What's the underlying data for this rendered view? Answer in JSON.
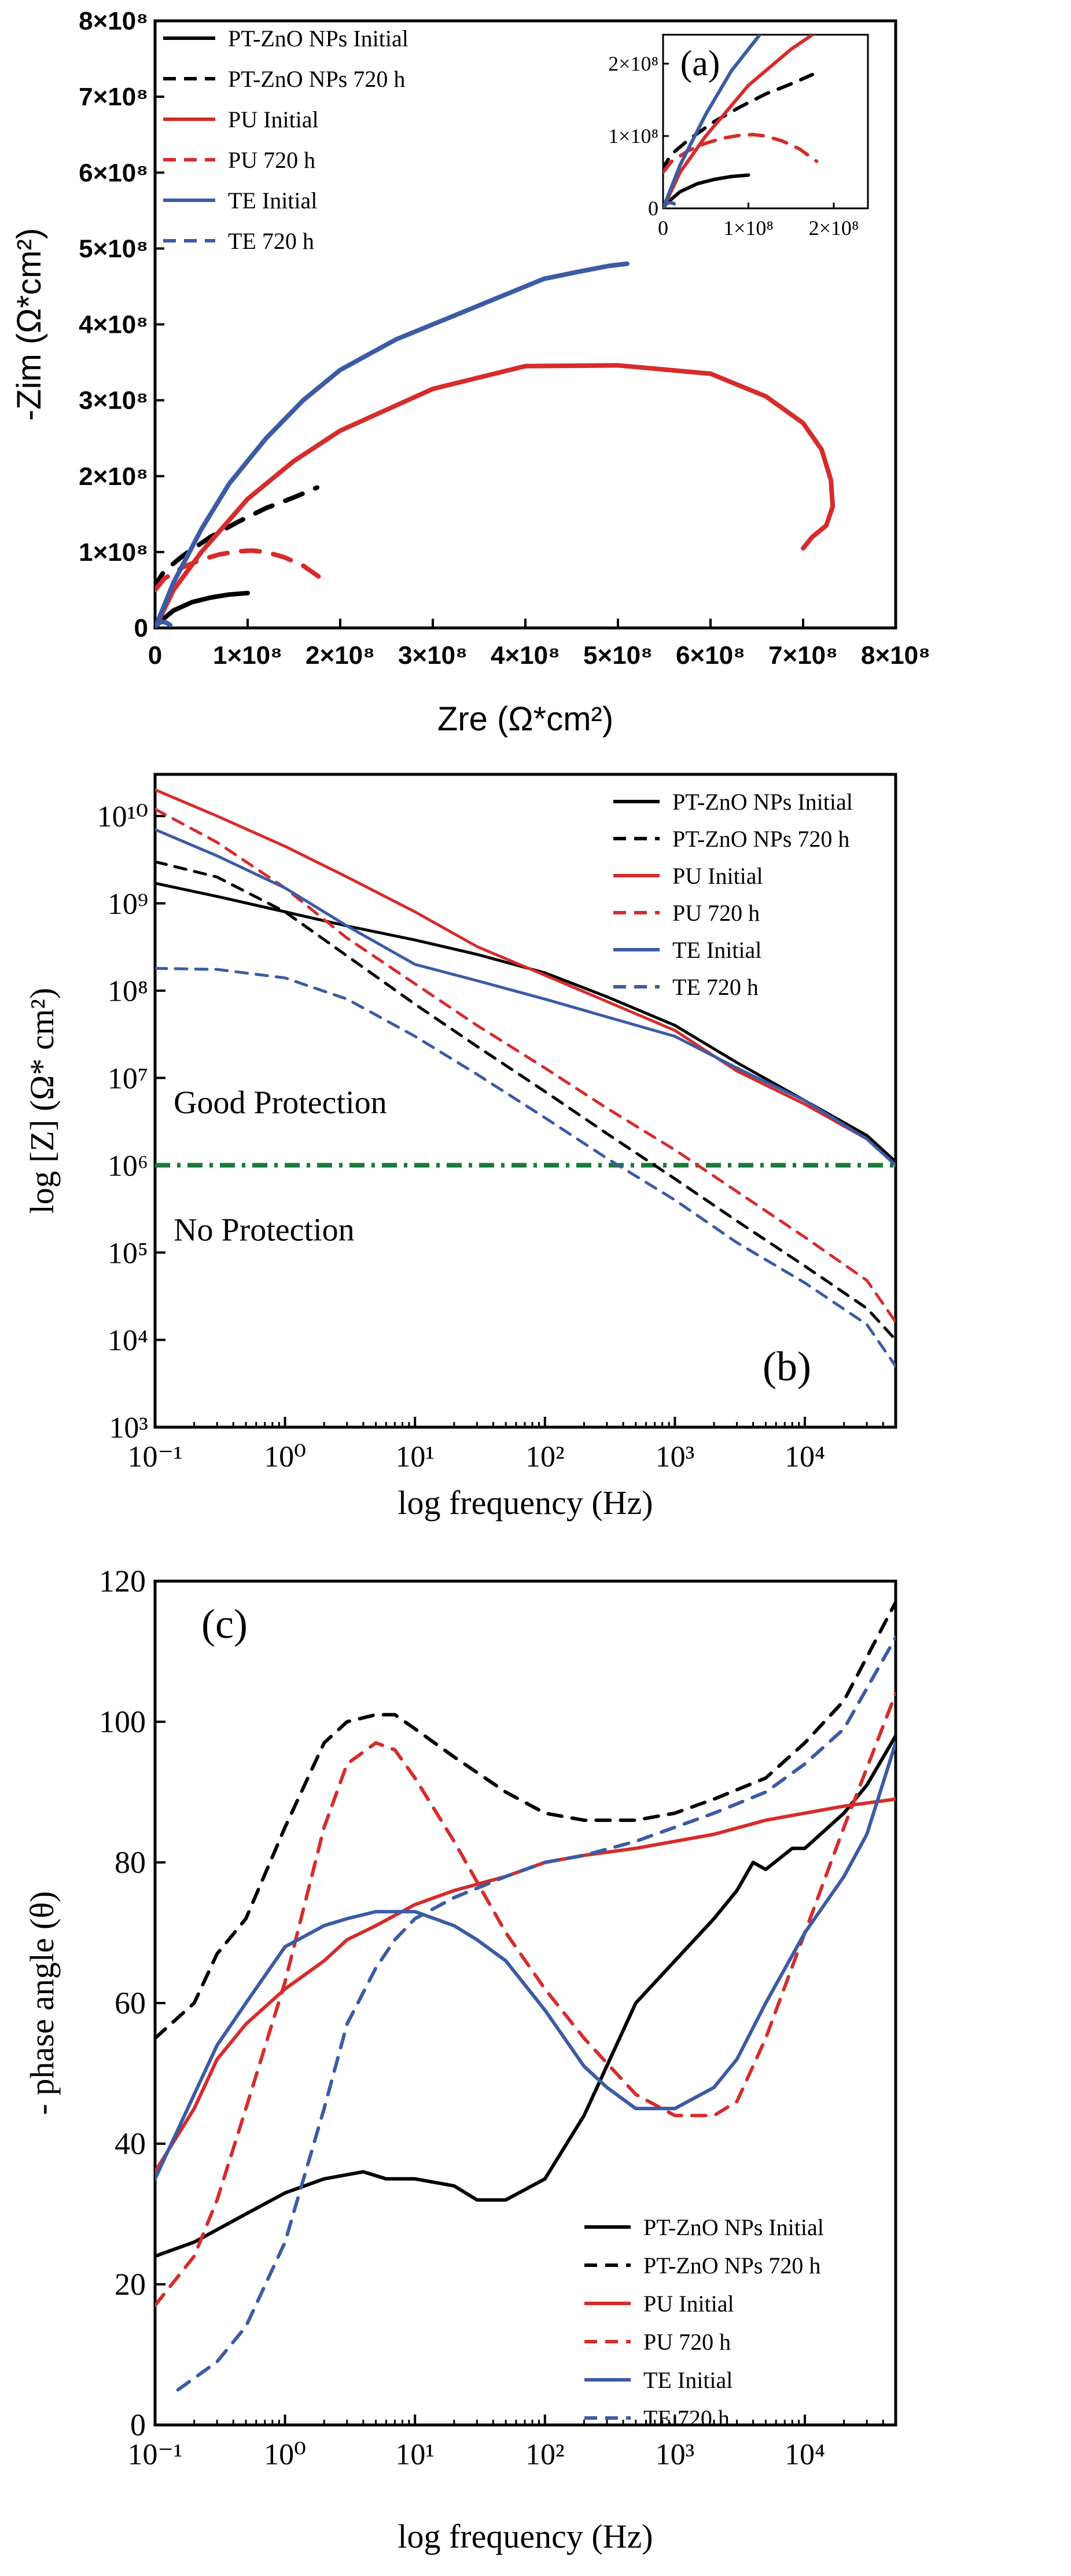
{
  "colors": {
    "black": "#000000",
    "red": "#d62c2c",
    "blue": "#3b5ba5",
    "green": "#1b7a3a"
  },
  "chart_data": [
    {
      "id": "a",
      "type": "line",
      "panel_label": "(a)",
      "xlabel": "Zre (Ω*cm²)",
      "ylabel": "-Zim (Ω*cm²)",
      "xlim": [
        0,
        800000000.0
      ],
      "ylim": [
        0,
        800000000.0
      ],
      "x_ticks": [
        0,
        100000000.0,
        200000000.0,
        300000000.0,
        400000000.0,
        500000000.0,
        600000000.0,
        700000000.0,
        800000000.0
      ],
      "x_tick_labels": [
        "0",
        "1×10⁸",
        "2×10⁸",
        "3×10⁸",
        "4×10⁸",
        "5×10⁸",
        "6×10⁸",
        "7×10⁸",
        "8×10⁸"
      ],
      "y_ticks": [
        0,
        100000000.0,
        200000000.0,
        300000000.0,
        400000000.0,
        500000000.0,
        600000000.0,
        700000000.0,
        800000000.0
      ],
      "y_tick_labels": [
        "0",
        "1×10⁸",
        "2×10⁸",
        "3×10⁸",
        "4×10⁸",
        "5×10⁸",
        "6×10⁸",
        "7×10⁸",
        "8×10⁸"
      ],
      "legend_position": "top-left",
      "series": [
        {
          "name": "PT-ZnO NPs Initial",
          "color": "black",
          "dash": false,
          "x": [
            0,
            5000000.0,
            20000000.0,
            40000000.0,
            60000000.0,
            80000000.0,
            100000000.0
          ],
          "y": [
            0,
            8000000.0,
            23000000.0,
            34000000.0,
            40000000.0,
            44000000.0,
            46000000.0
          ]
        },
        {
          "name": "PT-ZnO NPs 720 h",
          "color": "black",
          "dash": true,
          "x": [
            0,
            2000000.0,
            10000000.0,
            30000000.0,
            60000000.0,
            90000000.0,
            120000000.0,
            150000000.0,
            175000000.0
          ],
          "y": [
            50000000.0,
            60000000.0,
            75000000.0,
            95000000.0,
            120000000.0,
            140000000.0,
            158000000.0,
            172000000.0,
            185000000.0
          ]
        },
        {
          "name": "PU Initial",
          "color": "red",
          "dash": false,
          "x": [
            0,
            20000000.0,
            50000000.0,
            100000000.0,
            150000000.0,
            200000000.0,
            300000000.0,
            400000000.0,
            500000000.0,
            600000000.0,
            660000000.0,
            700000000.0,
            720000000.0,
            730000000.0,
            732000000.0,
            725000000.0,
            710000000.0,
            700000000.0
          ],
          "y": [
            0,
            50000000.0,
            100000000.0,
            170000000.0,
            220000000.0,
            260000000.0,
            315000000.0,
            345000000.0,
            346000000.0,
            335000000.0,
            305000000.0,
            270000000.0,
            235000000.0,
            195000000.0,
            160000000.0,
            135000000.0,
            120000000.0,
            105000000.0
          ]
        },
        {
          "name": "PU 720 h",
          "color": "red",
          "dash": true,
          "x": [
            0,
            10000000.0,
            30000000.0,
            50000000.0,
            70000000.0,
            90000000.0,
            105000000.0,
            120000000.0,
            140000000.0,
            160000000.0,
            180000000.0
          ],
          "y": [
            50000000.0,
            65000000.0,
            80000000.0,
            90000000.0,
            97000000.0,
            101000000.0,
            102000000.0,
            100000000.0,
            93000000.0,
            82000000.0,
            65000000.0
          ]
        },
        {
          "name": "TE Initial",
          "color": "blue",
          "dash": false,
          "x": [
            0,
            20000000.0,
            50000000.0,
            80000000.0,
            120000000.0,
            160000000.0,
            200000000.0,
            260000000.0,
            320000000.0,
            370000000.0,
            420000000.0,
            460000000.0,
            490000000.0,
            510000000.0
          ],
          "y": [
            0,
            60000000.0,
            130000000.0,
            190000000.0,
            250000000.0,
            300000000.0,
            340000000.0,
            380000000.0,
            410000000.0,
            435000000.0,
            460000000.0,
            470000000.0,
            477000000.0,
            480000000.0
          ]
        },
        {
          "name": "TE 720 h",
          "color": "blue",
          "dash": true,
          "x": [
            0,
            2000000.0,
            5000000.0,
            8000000.0,
            12000000.0,
            16000000.0,
            20000000.0
          ],
          "y": [
            0,
            4000000.0,
            7000000.0,
            8000000.0,
            7000000.0,
            4000000.0,
            0
          ]
        }
      ],
      "inset": {
        "xlim": [
          0,
          240000000.0
        ],
        "ylim": [
          0,
          240000000.0
        ],
        "x_ticks": [
          0,
          100000000.0,
          200000000.0
        ],
        "x_tick_labels": [
          "0",
          "1×10⁸",
          "2×10⁸"
        ],
        "y_ticks": [
          0,
          100000000.0,
          200000000.0
        ],
        "y_tick_labels": [
          "0",
          "1×10⁸",
          "2×10⁸"
        ]
      }
    },
    {
      "id": "b",
      "type": "line",
      "panel_label": "(b)",
      "xlabel": "log frequency (Hz)",
      "ylabel": "log [Z] (Ω* cm²)",
      "x_scale": "log",
      "y_scale": "log",
      "xlim": [
        0.1,
        50000
      ],
      "ylim": [
        1000,
        30000000000
      ],
      "x_ticks": [
        0.1,
        1,
        10,
        100,
        1000,
        10000
      ],
      "x_tick_labels": [
        "10⁻¹",
        "10⁰",
        "10¹",
        "10²",
        "10³",
        "10⁴"
      ],
      "y_ticks": [
        1000,
        10000,
        100000,
        1000000,
        10000000,
        100000000,
        1000000000,
        10000000000
      ],
      "y_tick_labels": [
        "10³",
        "10⁴",
        "10⁵",
        "10⁶",
        "10⁷",
        "10⁸",
        "10⁹",
        "10¹⁰"
      ],
      "legend_position": "top-right",
      "annotations": [
        "Good Protection",
        "No Protection"
      ],
      "threshold": {
        "y": 1000000,
        "color": "green",
        "style": "dash-dot"
      },
      "series": [
        {
          "name": "PT-ZnO NPs Initial",
          "color": "black",
          "dash": false,
          "x": [
            0.1,
            0.3,
            1,
            3,
            10,
            30,
            100,
            300,
            1000,
            3000,
            10000,
            30000,
            50000
          ],
          "y": [
            1700000000.0,
            1200000000.0,
            800000000.0,
            550000000.0,
            380000000.0,
            260000000.0,
            160000000.0,
            85000000.0,
            40000000.0,
            15000000.0,
            5500000.0,
            2200000.0,
            1100000.0
          ]
        },
        {
          "name": "PT-ZnO NPs 720 h",
          "color": "black",
          "dash": true,
          "x": [
            0.1,
            0.3,
            1,
            3,
            10,
            30,
            100,
            300,
            1000,
            3000,
            10000,
            30000,
            50000
          ],
          "y": [
            3000000000.0,
            2000000000.0,
            800000000.0,
            250000000.0,
            70000000.0,
            23000000.0,
            7000000.0,
            2300000.0,
            700000.0,
            230000.0,
            70000.0,
            23000.0,
            10000.0
          ]
        },
        {
          "name": "PU Initial",
          "color": "red",
          "dash": false,
          "x": [
            0.1,
            0.3,
            1,
            3,
            10,
            30,
            100,
            300,
            1000,
            3000,
            10000,
            30000,
            50000
          ],
          "y": [
            20000000000.0,
            10000000000.0,
            4500000000.0,
            2000000000.0,
            800000000.0,
            320000000.0,
            150000000.0,
            75000000.0,
            35000000.0,
            12000000.0,
            5000000.0,
            2000000.0,
            1000000.0
          ]
        },
        {
          "name": "PU 720 h",
          "color": "red",
          "dash": true,
          "x": [
            0.1,
            0.3,
            1,
            3,
            10,
            30,
            100,
            300,
            1000,
            3000,
            10000,
            30000,
            50000
          ],
          "y": [
            12000000000.0,
            5000000000.0,
            1500000000.0,
            400000000.0,
            120000000.0,
            40000000.0,
            13000000.0,
            4500000.0,
            1500000.0,
            500000.0,
            150000.0,
            48000.0,
            16000.0
          ]
        },
        {
          "name": "TE Initial",
          "color": "blue",
          "dash": false,
          "x": [
            0.1,
            0.3,
            1,
            3,
            10,
            30,
            100,
            300,
            1000,
            3000,
            10000,
            30000,
            50000
          ],
          "y": [
            7000000000.0,
            3500000000.0,
            1500000000.0,
            550000000.0,
            200000000.0,
            130000000.0,
            80000000.0,
            50000000.0,
            30000000.0,
            13000000.0,
            5500000.0,
            2000000.0,
            1000000.0
          ]
        },
        {
          "name": "TE 720 h",
          "color": "blue",
          "dash": true,
          "x": [
            0.1,
            0.3,
            1,
            3,
            10,
            30,
            100,
            300,
            1000,
            3000,
            10000,
            30000,
            50000
          ],
          "y": [
            180000000.0,
            175000000.0,
            140000000.0,
            80000000.0,
            30000000.0,
            11000000.0,
            3500000.0,
            1200000.0,
            400000.0,
            130000.0,
            45000.0,
            15000.0,
            5000.0
          ]
        }
      ]
    },
    {
      "id": "c",
      "type": "line",
      "panel_label": "(c)",
      "xlabel": "log frequency (Hz)",
      "ylabel": "- phase angle (θ)",
      "x_scale": "log",
      "xlim": [
        0.1,
        50000
      ],
      "ylim": [
        0,
        120
      ],
      "x_ticks": [
        0.1,
        1,
        10,
        100,
        1000,
        10000
      ],
      "x_tick_labels": [
        "10⁻¹",
        "10⁰",
        "10¹",
        "10²",
        "10³",
        "10⁴"
      ],
      "y_ticks": [
        0,
        20,
        40,
        60,
        80,
        100,
        120
      ],
      "y_tick_labels": [
        "0",
        "20",
        "40",
        "60",
        "80",
        "100",
        "120"
      ],
      "legend_position": "bottom-right",
      "series": [
        {
          "name": "PT-ZnO NPs Initial",
          "color": "black",
          "dash": false,
          "x": [
            0.1,
            0.2,
            0.5,
            1,
            2,
            4,
            6,
            10,
            20,
            30,
            50,
            100,
            200,
            500,
            1000,
            2000,
            3000,
            4000,
            5000,
            8000,
            10000,
            20000,
            30000,
            50000
          ],
          "y": [
            24,
            26,
            30,
            33,
            35,
            36,
            35,
            35,
            34,
            32,
            32,
            35,
            44,
            60,
            66,
            72,
            76,
            80,
            79,
            82,
            82,
            87,
            91,
            98
          ]
        },
        {
          "name": "PT-ZnO NPs 720 h",
          "color": "black",
          "dash": true,
          "x": [
            0.1,
            0.2,
            0.3,
            0.5,
            1,
            2,
            3,
            5,
            7,
            10,
            20,
            50,
            100,
            200,
            500,
            1000,
            2000,
            5000,
            10000,
            20000,
            50000
          ],
          "y": [
            55,
            60,
            67,
            72,
            85,
            97,
            100,
            101,
            101,
            99,
            95,
            90,
            87,
            86,
            86,
            87,
            89,
            92,
            97,
            103,
            117
          ]
        },
        {
          "name": "PU Initial",
          "color": "red",
          "dash": false,
          "x": [
            0.1,
            0.2,
            0.3,
            0.5,
            1,
            2,
            3,
            5,
            10,
            20,
            50,
            100,
            200,
            500,
            1000,
            2000,
            5000,
            10000,
            20000,
            50000
          ],
          "y": [
            36,
            45,
            52,
            57,
            62,
            66,
            69,
            71,
            74,
            76,
            78,
            80,
            81,
            82,
            83,
            84,
            86,
            87,
            88,
            89
          ]
        },
        {
          "name": "PU 720 h",
          "color": "red",
          "dash": true,
          "x": [
            0.1,
            0.2,
            0.3,
            0.5,
            1,
            2,
            3,
            5,
            7,
            10,
            20,
            50,
            100,
            200,
            500,
            1000,
            2000,
            3000,
            5000,
            10000,
            20000,
            50000
          ],
          "y": [
            17,
            24,
            32,
            45,
            63,
            85,
            94,
            97,
            96,
            92,
            83,
            70,
            62,
            55,
            47,
            44,
            44,
            46,
            55,
            70,
            85,
            104
          ]
        },
        {
          "name": "TE Initial",
          "color": "blue",
          "dash": false,
          "x": [
            0.1,
            0.2,
            0.3,
            0.5,
            1,
            2,
            3,
            5,
            10,
            20,
            30,
            50,
            100,
            200,
            300,
            500,
            1000,
            2000,
            3000,
            5000,
            10000,
            20000,
            30000,
            50000
          ],
          "y": [
            35,
            47,
            54,
            60,
            68,
            71,
            72,
            73,
            73,
            71,
            69,
            66,
            59,
            51,
            48,
            45,
            45,
            48,
            52,
            60,
            70,
            78,
            84,
            97
          ]
        },
        {
          "name": "TE 720 h",
          "color": "blue",
          "dash": true,
          "x": [
            0.15,
            0.3,
            0.5,
            1,
            2,
            3,
            5,
            7,
            10,
            20,
            50,
            100,
            200,
            500,
            1000,
            2000,
            5000,
            10000,
            20000,
            50000
          ],
          "y": [
            5,
            9,
            14,
            26,
            45,
            57,
            65,
            69,
            72,
            75,
            78,
            80,
            81,
            83,
            85,
            87,
            90,
            94,
            99,
            112
          ]
        }
      ]
    }
  ]
}
